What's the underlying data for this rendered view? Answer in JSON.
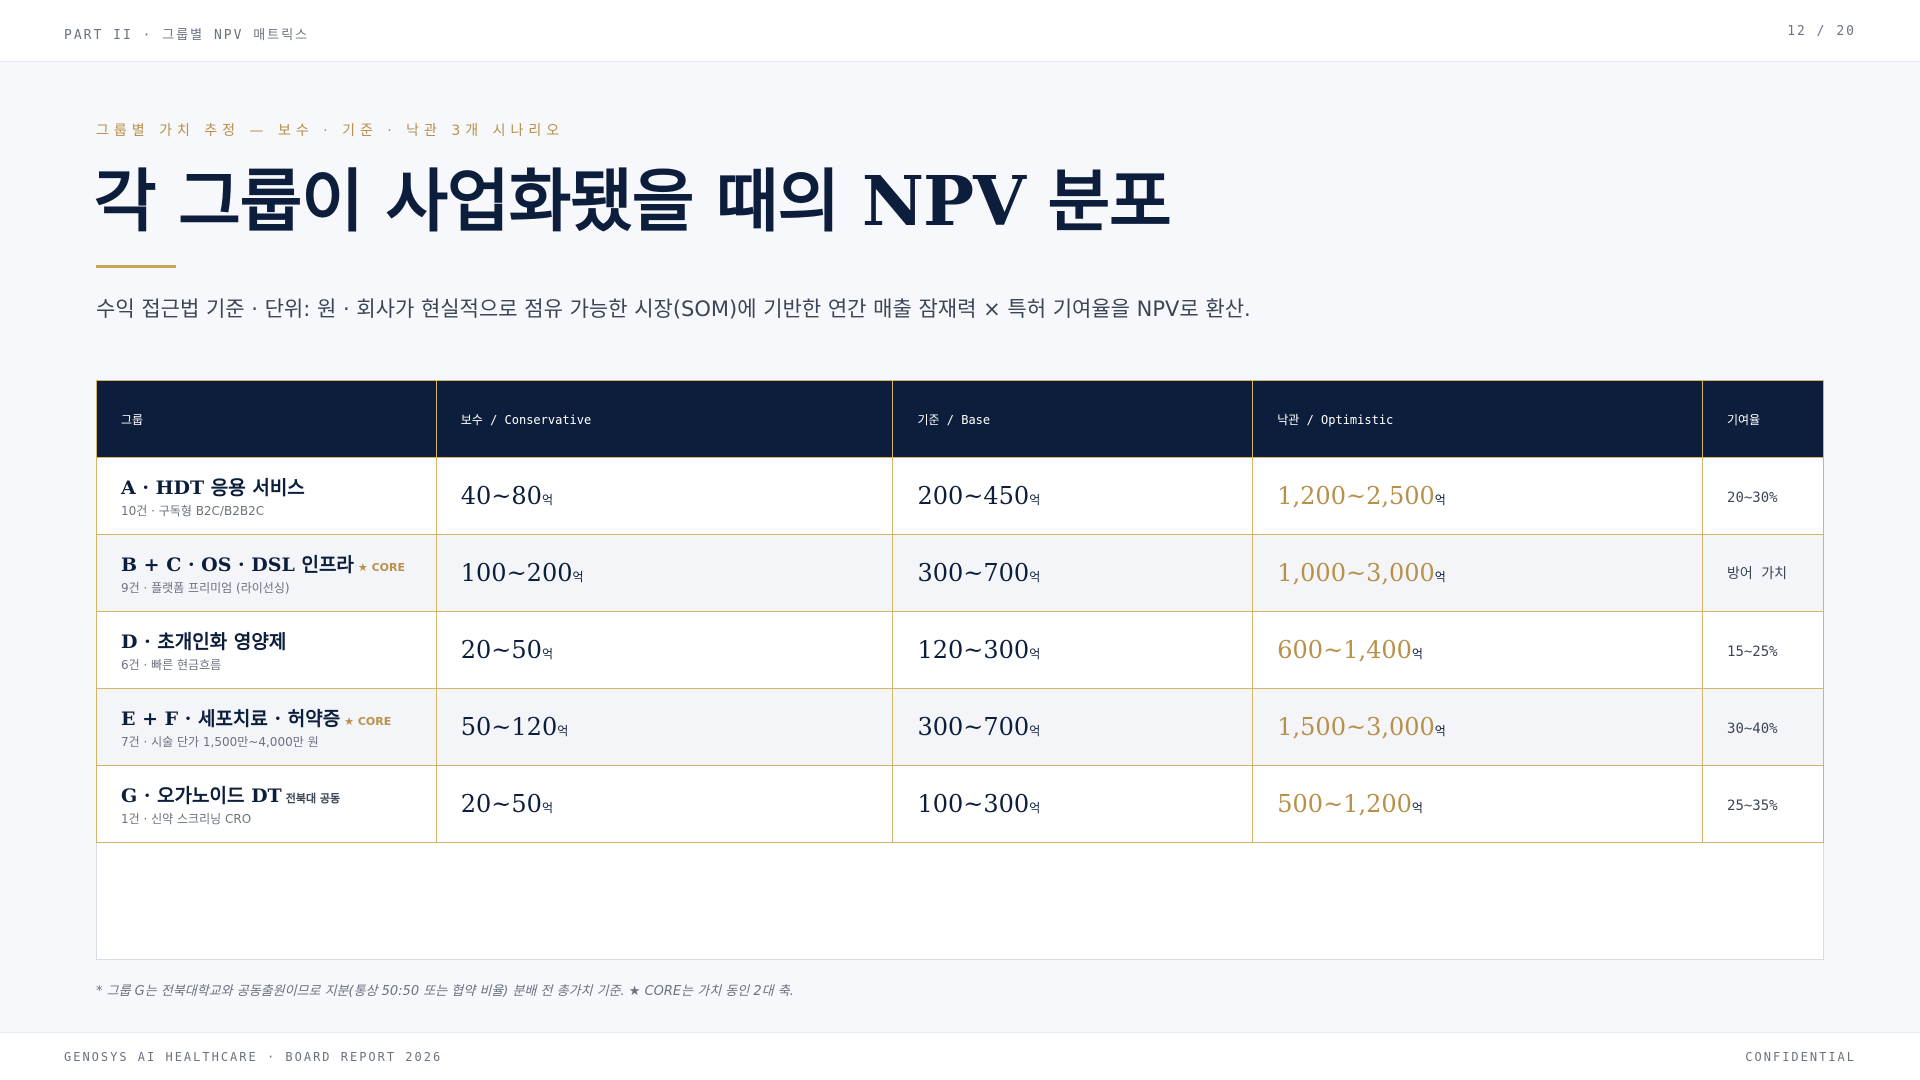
{
  "header": {
    "section": "PART II · 그룹별 NPV 매트릭스",
    "page": "12 / 20"
  },
  "eyebrow": "그룹별 가치 추정 — 보수 · 기준 · 낙관 3개 시나리오",
  "title": "각 그룹이 사업화됐을 때의 NPV 분포",
  "subtitle": "수익 접근법 기준 · 단위: 원 · 회사가 현실적으로 점유 가능한 시장(SOM)에 기반한 연간 매출 잠재력 × 특허 기여율을 NPV로 환산.",
  "table": {
    "unit": "억",
    "columns": [
      "그룹",
      "보수 / Conservative",
      "기준 / Base",
      "낙관 / Optimistic",
      "기여율"
    ],
    "rows": [
      {
        "name": "A · HDT 응용 서비스",
        "sub": "10건 · 구독형 B2C/B2B2C",
        "conservative": "40~80",
        "base": "200~450",
        "optimistic": "1,200~2,500",
        "share": "20~30%"
      },
      {
        "name": "B + C · OS · DSL 인프라",
        "tag": "★ CORE",
        "sub": "9건 · 플랫폼 프리미엄 (라이선싱)",
        "conservative": "100~200",
        "base": "300~700",
        "optimistic": "1,000~3,000",
        "share": "방어 가치"
      },
      {
        "name": "D · 초개인화 영양제",
        "sub": "6건 · 빠른 현금흐름",
        "conservative": "20~50",
        "base": "120~300",
        "optimistic": "600~1,400",
        "share": "15~25%"
      },
      {
        "name": "E + F · 세포치료 · 허약증",
        "tag": "★ CORE",
        "sub": "7건 · 시술 단가 1,500만~4,000만 원",
        "conservative": "50~120",
        "base": "300~700",
        "optimistic": "1,500~3,000",
        "share": "30~40%"
      },
      {
        "name": "G · 오가노이드 DT",
        "tag": "전북대 공동",
        "sub": "1건 · 신약 스크리닝 CRO",
        "conservative": "20~50",
        "base": "100~300",
        "optimistic": "500~1,200",
        "share": "25~35%"
      }
    ]
  },
  "footnote": "* 그룹 G는 전북대학교와 공동출원이므로 지분(통상 50:50 또는 협약 비율) 분배 전 총가치 기준. ★ CORE는 가치 동인 2대 축.",
  "footer": {
    "left": "GENOSYS AI HEALTHCARE · BOARD REPORT 2026",
    "right": "CONFIDENTIAL"
  }
}
